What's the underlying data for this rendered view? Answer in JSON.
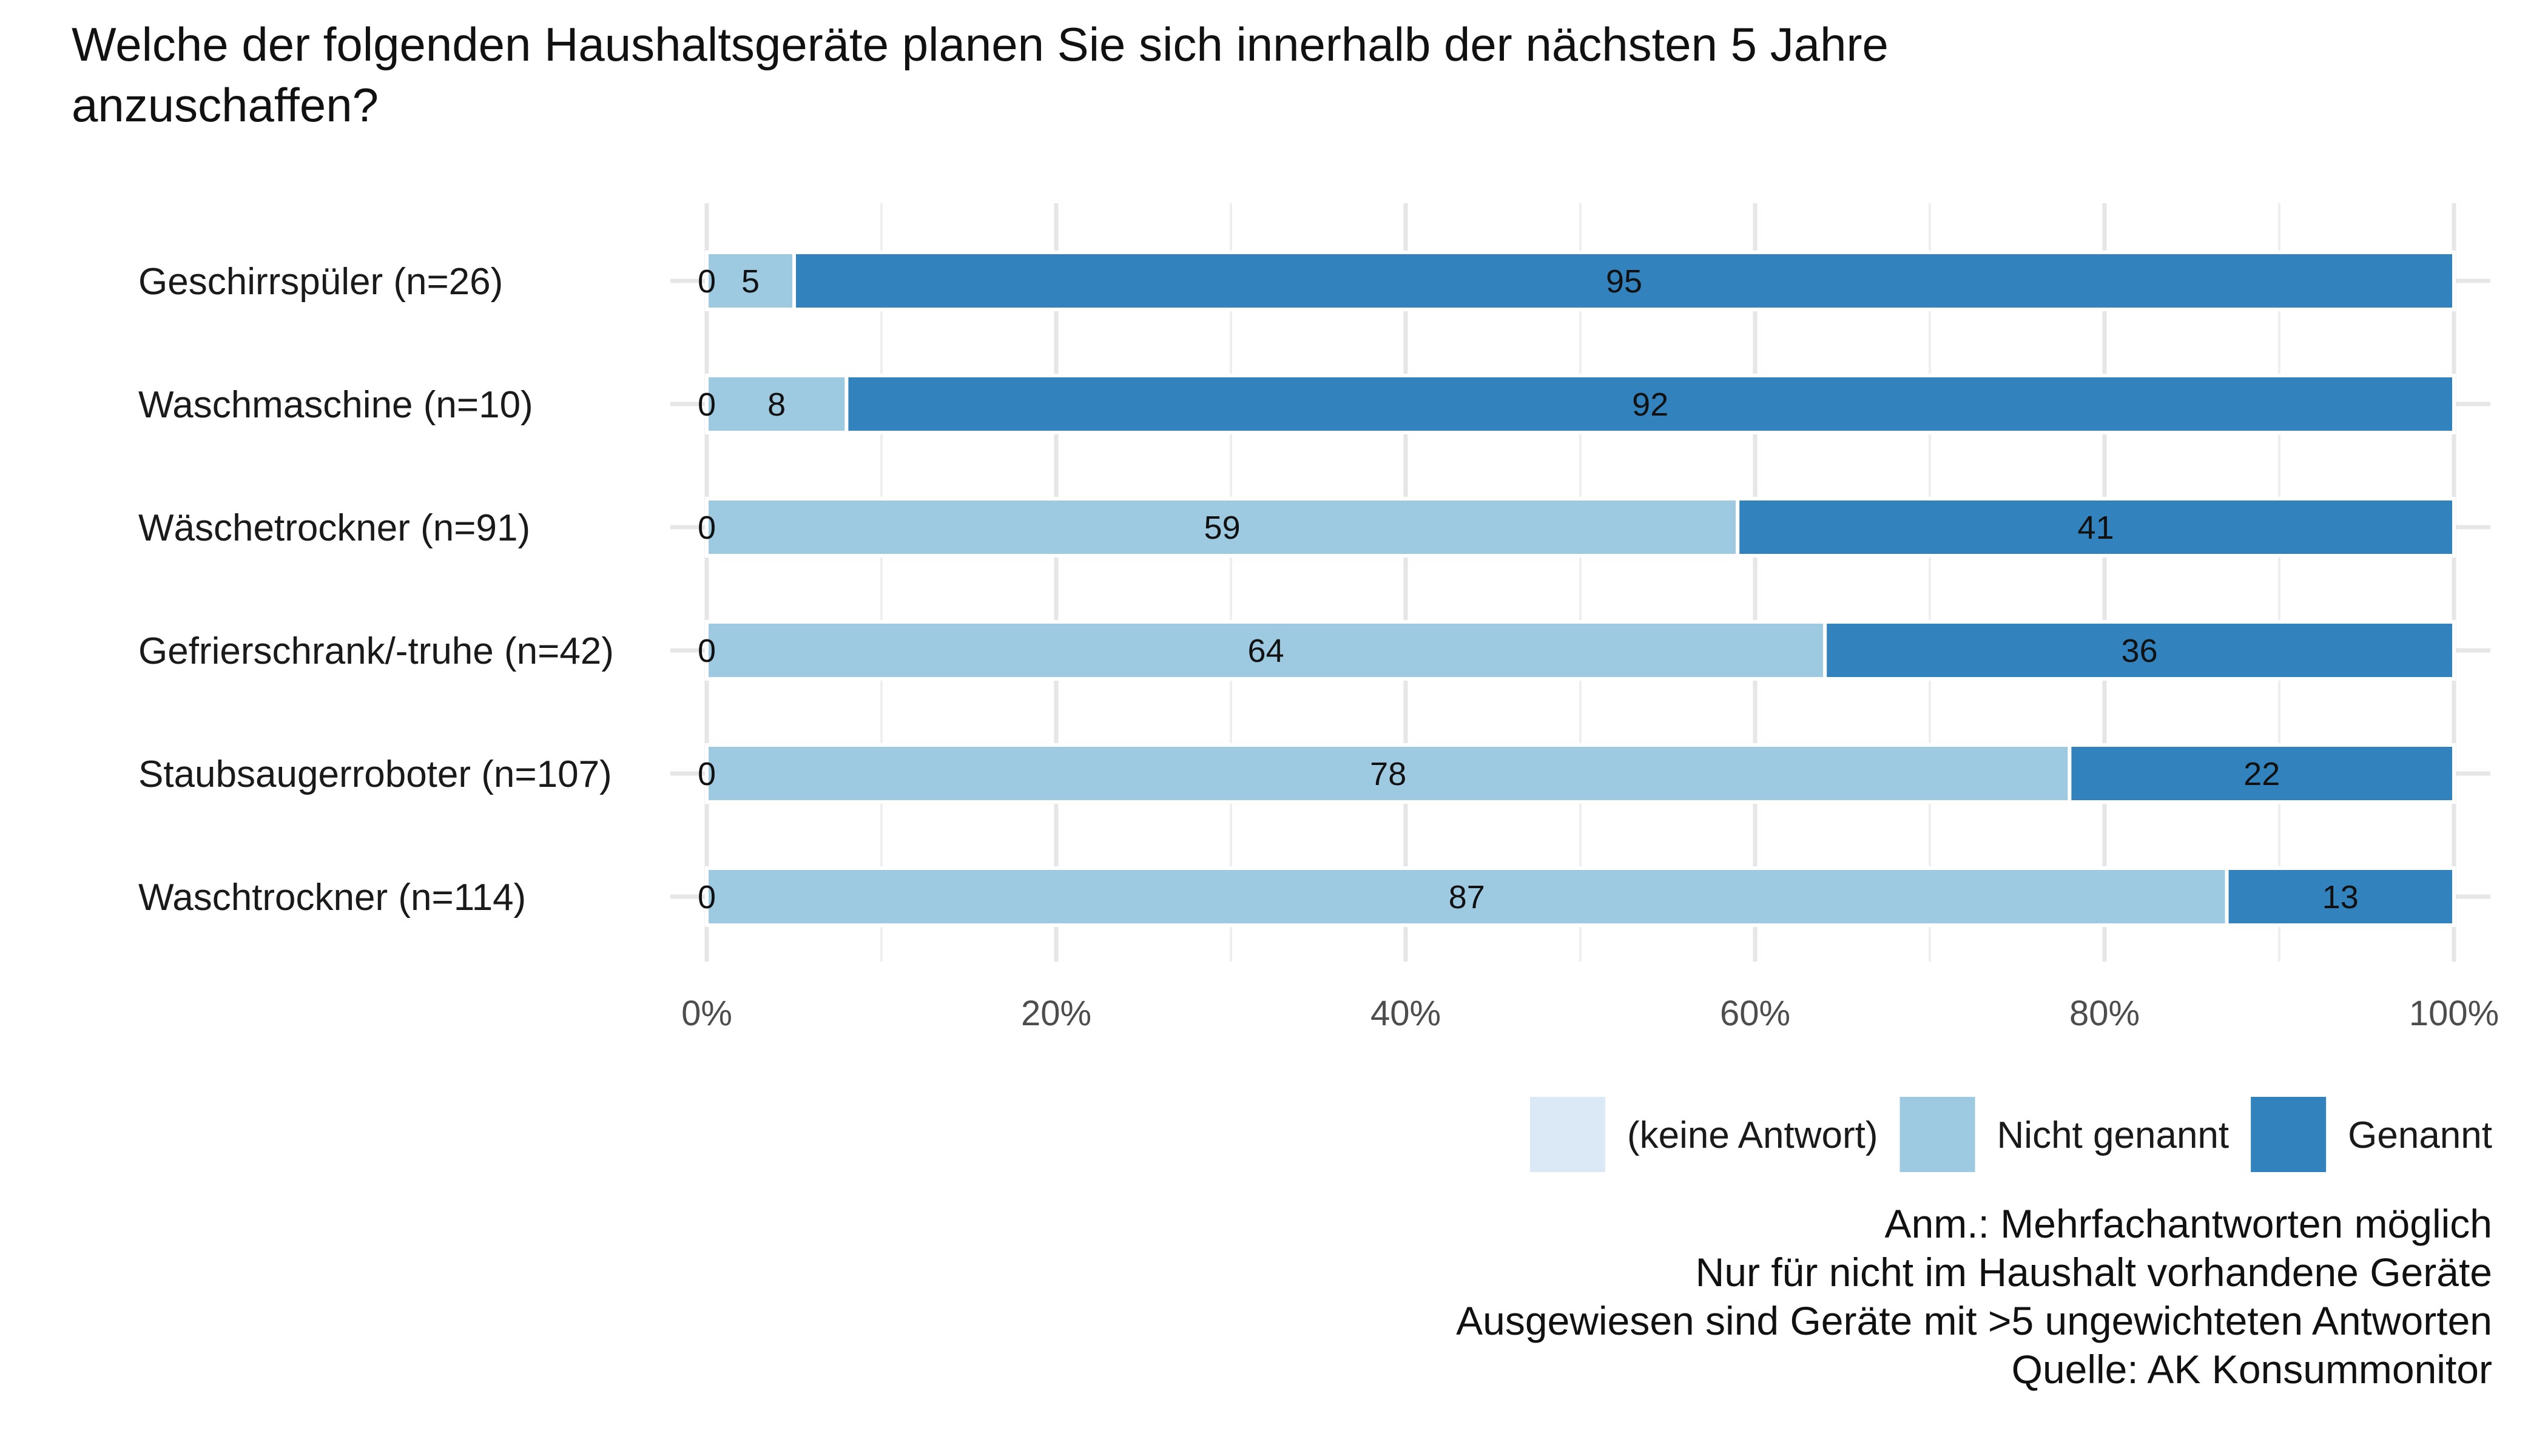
{
  "chart_data": {
    "type": "bar",
    "orientation": "horizontal",
    "stacked": true,
    "title_lines": [
      "Welche der folgenden Haushaltsgeräte planen Sie sich innerhalb der nächsten 5 Jahre",
      "anzuschaffen?"
    ],
    "categories": [
      "Geschirrspüler (n=26)",
      "Waschmaschine (n=10)",
      "Wäschetrockner (n=91)",
      "Gefrierschrank/-truhe (n=42)",
      "Staubsaugerroboter (n=107)",
      "Waschtrockner (n=114)"
    ],
    "series": [
      {
        "name": "(keine Antwort)",
        "color": "#dbe9f6",
        "values": [
          0,
          0,
          0,
          0,
          0,
          0
        ]
      },
      {
        "name": "Nicht genannt",
        "color": "#9ecae1",
        "values": [
          5,
          8,
          59,
          64,
          78,
          87
        ]
      },
      {
        "name": "Genannt",
        "color": "#3182bd",
        "values": [
          95,
          92,
          41,
          36,
          22,
          13
        ]
      }
    ],
    "xlim": [
      0,
      100
    ],
    "x_ticks": [
      0,
      20,
      40,
      60,
      80,
      100
    ],
    "x_tick_labels": [
      "0%",
      "20%",
      "40%",
      "60%",
      "80%",
      "100%"
    ],
    "grid": true,
    "legend_position": "bottom-right",
    "notes": [
      "Anm.: Mehrfachantworten möglich",
      "Nur für nicht im Haushalt vorhandene Geräte",
      "Ausgewiesen sind Geräte mit >5 ungewichteten Antworten",
      "Quelle: AK Konsummonitor"
    ]
  }
}
